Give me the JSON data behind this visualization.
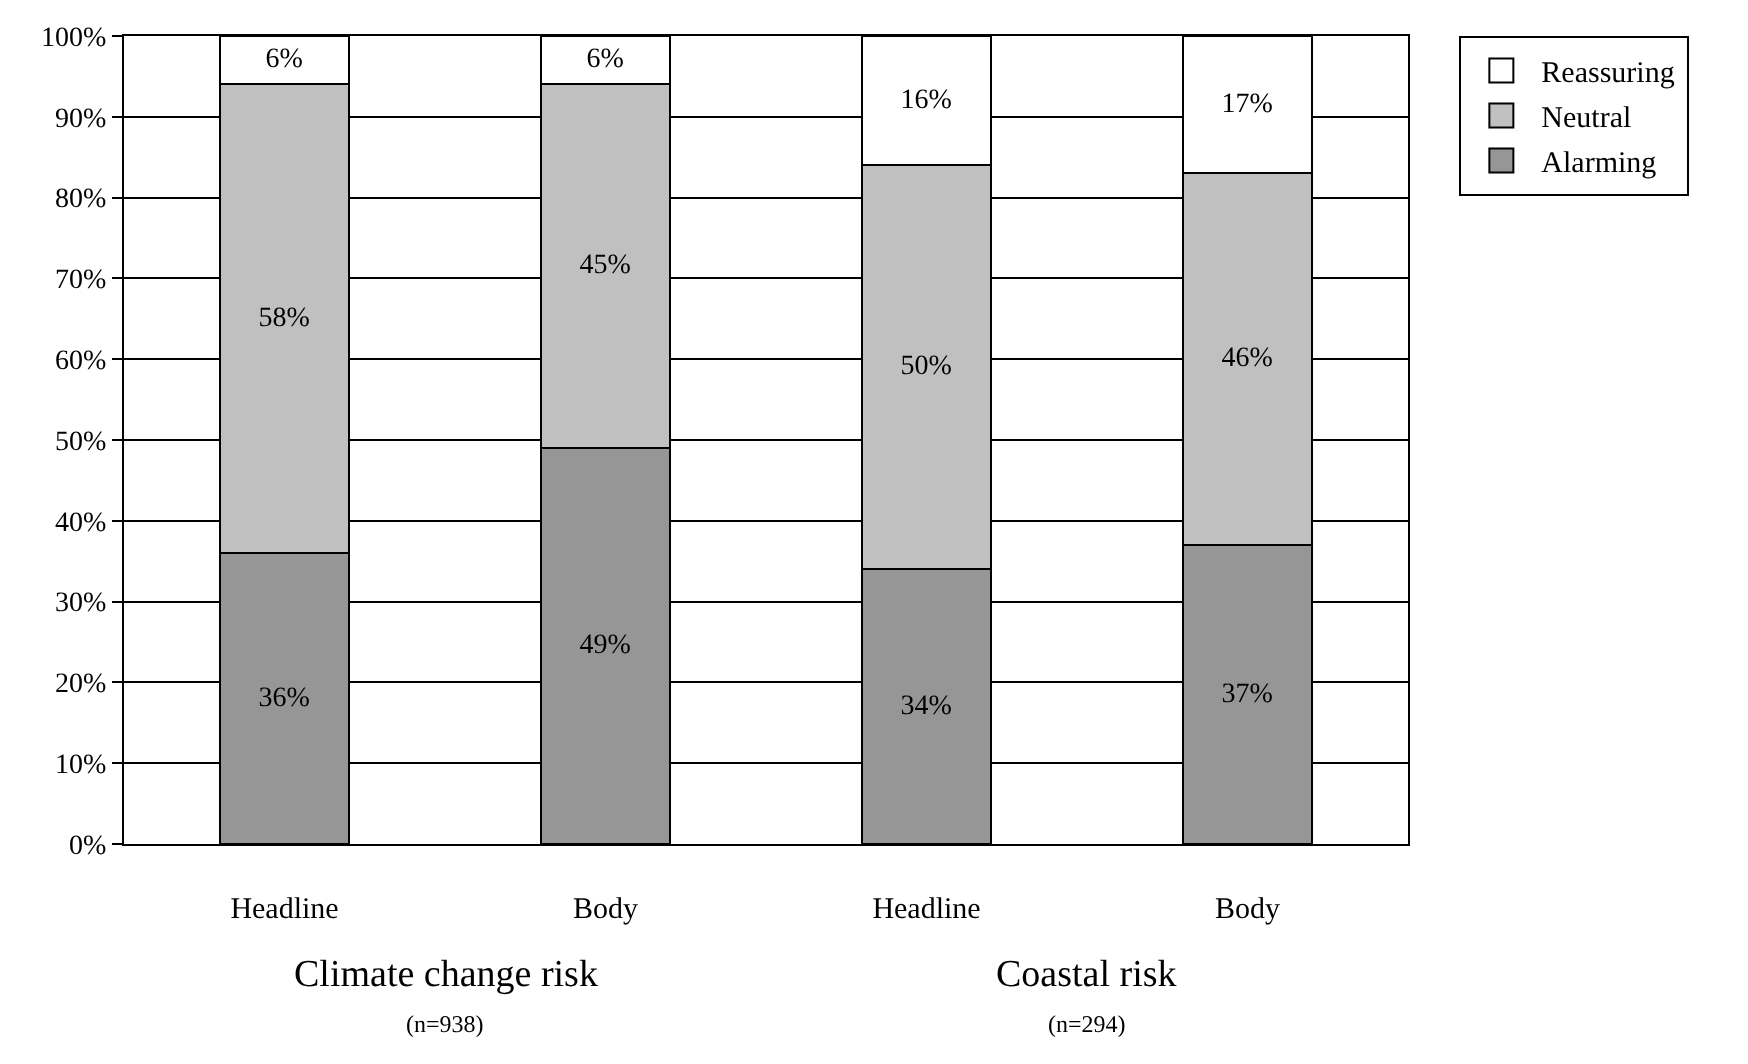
{
  "chart_data": {
    "type": "bar",
    "stacked": true,
    "categories": [
      "Headline",
      "Body",
      "Headline",
      "Body"
    ],
    "series": [
      {
        "name": "Alarming",
        "color": "#969696",
        "values": [
          36,
          49,
          34,
          37
        ],
        "value_labels": [
          "36%",
          "49%",
          "34%",
          "37%"
        ]
      },
      {
        "name": "Neutral",
        "color": "#c0c0c0",
        "values": [
          58,
          45,
          50,
          46
        ],
        "value_labels": [
          "58%",
          "45%",
          "50%",
          "46%"
        ]
      },
      {
        "name": "Reassuring",
        "color": "#ffffff",
        "values": [
          6,
          6,
          16,
          17
        ],
        "value_labels": [
          "6%",
          "6%",
          "16%",
          "17%"
        ]
      }
    ],
    "ylim": [
      0,
      100
    ],
    "yticks": [
      {
        "value": 0,
        "label": "0%"
      },
      {
        "value": 10,
        "label": "10%"
      },
      {
        "value": 20,
        "label": "20%"
      },
      {
        "value": 30,
        "label": "30%"
      },
      {
        "value": 40,
        "label": "40%"
      },
      {
        "value": 50,
        "label": "50%"
      },
      {
        "value": 60,
        "label": "60%"
      },
      {
        "value": 70,
        "label": "70%"
      },
      {
        "value": 80,
        "label": "80%"
      },
      {
        "value": 90,
        "label": "90%"
      },
      {
        "value": 100,
        "label": "100%"
      }
    ],
    "grid": "y",
    "legend": "top right",
    "annotations": [
      "Climate change risk",
      "(n=938)",
      "Coastal risk",
      "(n=294)"
    ]
  }
}
